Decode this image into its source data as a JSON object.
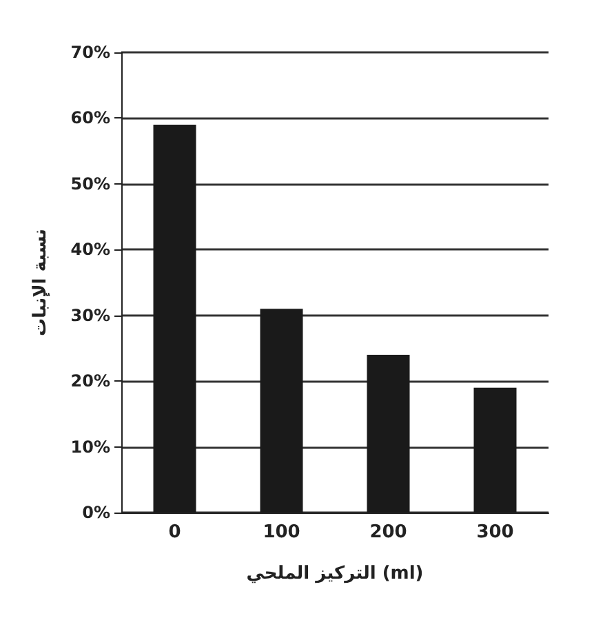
{
  "chart_data": {
    "type": "bar",
    "xlabel": "التركيز الملحي (ml)",
    "ylabel": "نسبة الإنبات",
    "categories": [
      "0",
      "100",
      "200",
      "300"
    ],
    "values": [
      59,
      31,
      24,
      19
    ],
    "color": "#1a1a1a",
    "ylim": [
      0,
      70
    ],
    "yticks": [
      {
        "value": 0,
        "label": "0%"
      },
      {
        "value": 10,
        "label": "10%"
      },
      {
        "value": 20,
        "label": "20%"
      },
      {
        "value": 30,
        "label": "30%"
      },
      {
        "value": 40,
        "label": "40%"
      },
      {
        "value": 50,
        "label": "50%"
      },
      {
        "value": 60,
        "label": "60%"
      },
      {
        "value": 70,
        "label": "70%"
      }
    ],
    "grid": "y"
  }
}
